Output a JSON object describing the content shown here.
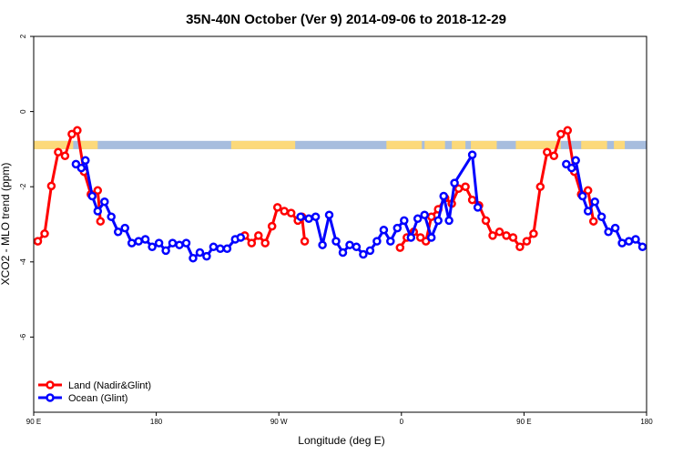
{
  "chart_data": {
    "type": "line",
    "title": "35N-40N October (Ver 9)   2014-09-06 to 2018-12-29",
    "xlabel": "Longitude (deg E)",
    "ylabel": "XCO2 - MLO trend (ppm)",
    "xlim": [
      90,
      540
    ],
    "ylim": [
      -8,
      2
    ],
    "x_ticks": [
      {
        "value": 90,
        "label": "90 E"
      },
      {
        "value": 180,
        "label": "180"
      },
      {
        "value": 270,
        "label": "90 W"
      },
      {
        "value": 360,
        "label": "0"
      },
      {
        "value": 450,
        "label": "90 E"
      },
      {
        "value": 540,
        "label": "180"
      }
    ],
    "y_ticks": [
      {
        "value": 2,
        "label": "2"
      },
      {
        "value": 0,
        "label": "0"
      },
      {
        "value": -2,
        "label": "-2"
      },
      {
        "value": -4,
        "label": "-4"
      },
      {
        "value": -6,
        "label": "-6"
      }
    ],
    "grid": false,
    "legend_position": "bottom-left",
    "land_ocean_band": {
      "y_range": [
        -1.0,
        -0.78
      ],
      "land_color": "#fcd97a",
      "ocean_color": "#a7bdde",
      "land_segments": [
        [
          90,
          119
        ],
        [
          123,
          137
        ],
        [
          235,
          282
        ],
        [
          349,
          375
        ],
        [
          377,
          392
        ],
        [
          397,
          407
        ],
        [
          411,
          430
        ],
        [
          444,
          477
        ],
        [
          492,
          511
        ],
        [
          516,
          524
        ]
      ]
    },
    "series": [
      {
        "name": "Land (Nadir&Glint)",
        "color": "#ff0000",
        "points": [
          [
            [
              93,
              -3.45
            ],
            [
              98,
              -3.25
            ],
            [
              103,
              -1.98
            ],
            [
              108,
              -1.08
            ],
            [
              113,
              -1.18
            ],
            [
              118,
              -0.6
            ],
            [
              122,
              -0.5
            ],
            [
              127,
              -1.6
            ],
            [
              132,
              -2.2
            ],
            [
              137,
              -2.1
            ],
            [
              139,
              -2.92
            ]
          ],
          [
            [
              245,
              -3.3
            ],
            [
              250,
              -3.5
            ],
            [
              255,
              -3.3
            ],
            [
              260,
              -3.5
            ],
            [
              265,
              -3.05
            ],
            [
              269,
              -2.55
            ],
            [
              274,
              -2.65
            ],
            [
              279,
              -2.7
            ],
            [
              284,
              -2.9
            ],
            [
              287,
              -2.8
            ],
            [
              289,
              -3.45
            ]
          ],
          [
            [
              359,
              -3.62
            ],
            [
              364,
              -3.35
            ],
            [
              369,
              -3.2
            ],
            [
              374,
              -3.35
            ],
            [
              378,
              -3.45
            ],
            [
              382,
              -2.8
            ],
            [
              387,
              -2.6
            ],
            [
              392,
              -2.3
            ],
            [
              397,
              -2.45
            ],
            [
              402,
              -2.05
            ],
            [
              407,
              -2.0
            ],
            [
              412,
              -2.35
            ],
            [
              417,
              -2.5
            ],
            [
              422,
              -2.9
            ],
            [
              427,
              -3.3
            ],
            [
              432,
              -3.2
            ],
            [
              437,
              -3.3
            ],
            [
              442,
              -3.35
            ],
            [
              447,
              -3.6
            ],
            [
              452,
              -3.45
            ],
            [
              457,
              -3.25
            ],
            [
              462,
              -2.0
            ],
            [
              467,
              -1.08
            ],
            [
              472,
              -1.18
            ],
            [
              477,
              -0.6
            ],
            [
              482,
              -0.5
            ],
            [
              487,
              -1.6
            ],
            [
              492,
              -2.2
            ],
            [
              497,
              -2.1
            ],
            [
              501,
              -2.92
            ]
          ]
        ]
      },
      {
        "name": "Ocean (Glint)",
        "color": "#0000ff",
        "points": [
          [
            [
              121,
              -1.4
            ],
            [
              125,
              -1.5
            ],
            [
              128,
              -1.3
            ],
            [
              133,
              -2.25
            ],
            [
              137,
              -2.65
            ],
            [
              142,
              -2.4
            ],
            [
              147,
              -2.8
            ],
            [
              152,
              -3.2
            ],
            [
              157,
              -3.1
            ],
            [
              162,
              -3.5
            ],
            [
              167,
              -3.45
            ],
            [
              172,
              -3.4
            ],
            [
              177,
              -3.6
            ],
            [
              182,
              -3.5
            ],
            [
              187,
              -3.7
            ],
            [
              192,
              -3.5
            ],
            [
              197,
              -3.55
            ],
            [
              202,
              -3.5
            ],
            [
              207,
              -3.9
            ],
            [
              212,
              -3.75
            ],
            [
              217,
              -3.85
            ],
            [
              222,
              -3.6
            ],
            [
              227,
              -3.65
            ],
            [
              232,
              -3.65
            ],
            [
              238,
              -3.4
            ],
            [
              242,
              -3.35
            ]
          ],
          [
            [
              286,
              -2.8
            ],
            [
              292,
              -2.85
            ],
            [
              297,
              -2.8
            ],
            [
              302,
              -3.55
            ],
            [
              307,
              -2.75
            ],
            [
              312,
              -3.45
            ],
            [
              317,
              -3.75
            ],
            [
              322,
              -3.55
            ],
            [
              327,
              -3.6
            ],
            [
              332,
              -3.8
            ],
            [
              337,
              -3.7
            ],
            [
              342,
              -3.45
            ],
            [
              347,
              -3.15
            ],
            [
              352,
              -3.45
            ],
            [
              357,
              -3.1
            ],
            [
              362,
              -2.9
            ],
            [
              367,
              -3.35
            ],
            [
              372,
              -2.85
            ],
            [
              377,
              -2.75
            ],
            [
              382,
              -3.35
            ],
            [
              387,
              -2.9
            ],
            [
              391,
              -2.25
            ],
            [
              395,
              -2.9
            ],
            [
              399,
              -1.9
            ],
            [
              412,
              -1.15
            ],
            [
              416,
              -2.55
            ]
          ],
          [
            [
              481,
              -1.4
            ],
            [
              485,
              -1.5
            ],
            [
              488,
              -1.3
            ],
            [
              493,
              -2.25
            ],
            [
              497,
              -2.65
            ],
            [
              502,
              -2.4
            ],
            [
              507,
              -2.8
            ],
            [
              512,
              -3.2
            ],
            [
              517,
              -3.1
            ],
            [
              522,
              -3.5
            ],
            [
              527,
              -3.45
            ],
            [
              532,
              -3.4
            ],
            [
              537,
              -3.6
            ]
          ]
        ]
      }
    ]
  }
}
